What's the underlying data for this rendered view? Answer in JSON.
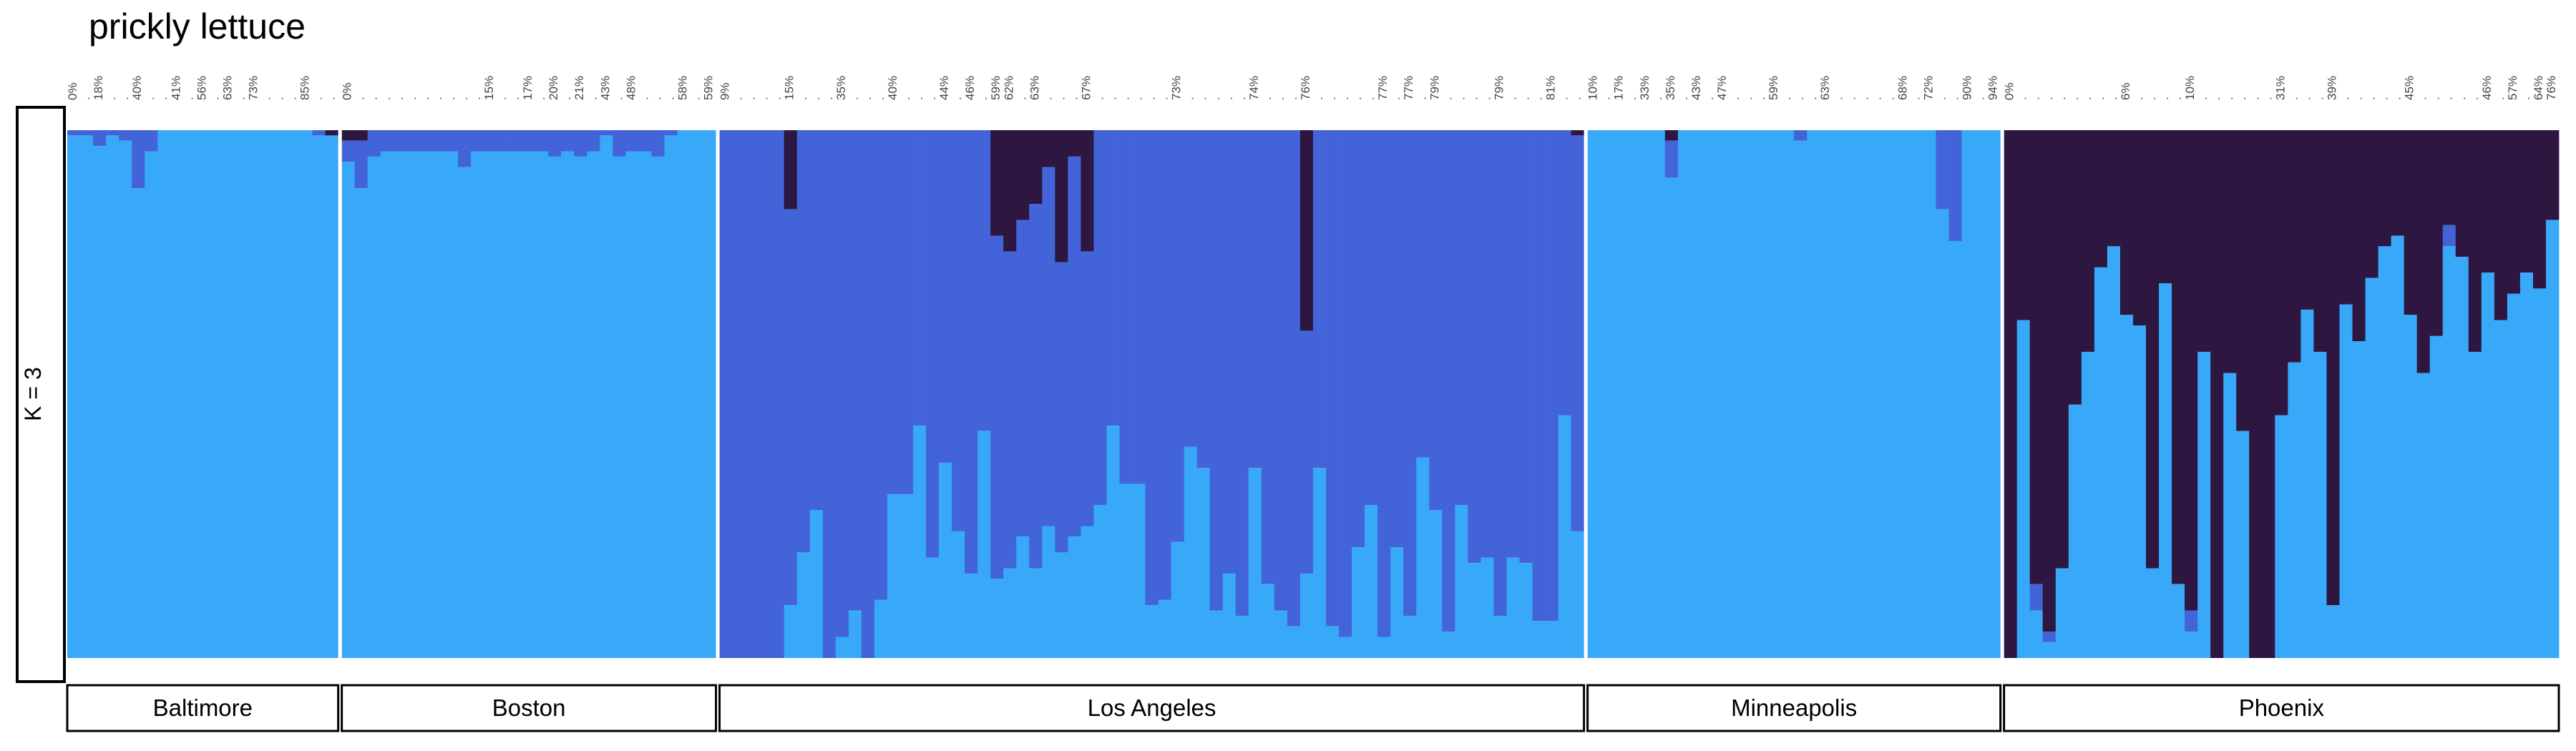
{
  "chart_data": {
    "type": "bar",
    "title": "prickly lettuce",
    "facet_label": "K = 3",
    "ylim": [
      0,
      1
    ],
    "colors": {
      "c1": "#38a8f8",
      "c2": "#4363d8",
      "c3": "#2d1640"
    },
    "groups": [
      {
        "name": "Baltimore",
        "tick_labels": [
          "0%",
          ".",
          "18%",
          ".",
          ".",
          "40%",
          ".",
          ".",
          "41%",
          ".",
          "56%",
          ".",
          "63%",
          ".",
          "73%",
          ".",
          ".",
          ".",
          "85%",
          ".",
          "."
        ],
        "c2": [
          0.01,
          0.01,
          0.03,
          0.01,
          0.02,
          0.11,
          0.04,
          0,
          0,
          0,
          0,
          0,
          0,
          0,
          0,
          0,
          0,
          0,
          0,
          0.01,
          0
        ],
        "c3": [
          0,
          0,
          0,
          0,
          0,
          0,
          0,
          0,
          0,
          0,
          0,
          0,
          0,
          0,
          0,
          0,
          0,
          0,
          0,
          0,
          0.01
        ]
      },
      {
        "name": "Boston",
        "tick_labels": [
          "0%",
          ".",
          ".",
          ".",
          ".",
          ".",
          ".",
          ".",
          ".",
          ".",
          ".",
          "15%",
          ".",
          ".",
          "17%",
          ".",
          "20%",
          ".",
          "21%",
          ".",
          "43%",
          ".",
          "48%",
          ".",
          ".",
          ".",
          "58%",
          ".",
          "59%"
        ],
        "c2": [
          0.04,
          0.09,
          0.05,
          0.04,
          0.04,
          0.04,
          0.04,
          0.04,
          0.04,
          0.07,
          0.04,
          0.04,
          0.04,
          0.04,
          0.04,
          0.04,
          0.05,
          0.04,
          0.05,
          0.04,
          0.01,
          0.05,
          0.04,
          0.04,
          0.05,
          0.01,
          0,
          0,
          0
        ],
        "c3": [
          0.02,
          0.02,
          0,
          0,
          0,
          0,
          0,
          0,
          0,
          0,
          0,
          0,
          0,
          0,
          0,
          0,
          0,
          0,
          0,
          0,
          0,
          0,
          0,
          0,
          0,
          0,
          0,
          0,
          0
        ]
      },
      {
        "name": "Los Angeles",
        "tick_labels": [
          "9%",
          ".",
          ".",
          ".",
          ".",
          "15%",
          ".",
          ".",
          ".",
          "35%",
          ".",
          ".",
          ".",
          "40%",
          ".",
          ".",
          ".",
          "44%",
          ".",
          "46%",
          ".",
          "59%",
          "62%",
          ".",
          "63%",
          ".",
          ".",
          ".",
          "67%",
          ".",
          ".",
          ".",
          ".",
          ".",
          ".",
          "73%",
          ".",
          ".",
          ".",
          ".",
          ".",
          "74%",
          ".",
          ".",
          ".",
          "76%",
          ".",
          ".",
          ".",
          ".",
          ".",
          "77%",
          ".",
          "77%",
          ".",
          "79%",
          ".",
          ".",
          ".",
          ".",
          "79%",
          ".",
          ".",
          ".",
          "81%",
          ".",
          "."
        ],
        "c2": [
          1,
          1,
          1,
          1,
          1,
          0.75,
          0.8,
          0.72,
          1,
          0.96,
          0.91,
          1,
          0.89,
          0.69,
          0.69,
          0.56,
          0.81,
          0.63,
          0.76,
          0.84,
          0.57,
          0.65,
          0.6,
          0.6,
          0.69,
          0.68,
          0.55,
          0.72,
          0.52,
          0.71,
          0.56,
          0.67,
          0.67,
          0.9,
          0.89,
          0.78,
          0.6,
          0.64,
          0.91,
          0.84,
          0.92,
          0.64,
          0.86,
          0.91,
          0.94,
          0.46,
          0.64,
          0.94,
          0.96,
          0.79,
          0.71,
          0.96,
          0.79,
          0.92,
          0.62,
          0.72,
          0.95,
          0.71,
          0.82,
          0.81,
          0.92,
          0.81,
          0.82,
          0.93,
          0.93,
          0.54,
          0.75
        ],
        "c3": [
          0,
          0,
          0,
          0,
          0,
          0.15,
          0,
          0,
          0,
          0,
          0,
          0,
          0,
          0,
          0,
          0,
          0,
          0,
          0,
          0,
          0,
          0.2,
          0.23,
          0.17,
          0.14,
          0.07,
          0.25,
          0.05,
          0.23,
          0,
          0,
          0,
          0,
          0,
          0,
          0,
          0,
          0,
          0,
          0,
          0,
          0,
          0,
          0,
          0,
          0.38,
          0,
          0,
          0,
          0,
          0,
          0,
          0,
          0,
          0,
          0,
          0,
          0,
          0,
          0,
          0,
          0,
          0,
          0,
          0,
          0,
          0.01,
          0
        ]
      },
      {
        "name": "Minneapolis",
        "tick_labels": [
          "10%",
          ".",
          "17%",
          ".",
          "33%",
          ".",
          "35%",
          ".",
          "43%",
          ".",
          "47%",
          ".",
          ".",
          ".",
          "59%",
          ".",
          ".",
          ".",
          "63%",
          ".",
          ".",
          ".",
          ".",
          ".",
          "68%",
          ".",
          "72%",
          ".",
          ".",
          "90%",
          ".",
          "94%"
        ],
        "c2": [
          0,
          0,
          0,
          0,
          0,
          0,
          0.07,
          0,
          0,
          0,
          0,
          0,
          0,
          0,
          0,
          0,
          0.02,
          0,
          0,
          0,
          0,
          0,
          0,
          0,
          0,
          0,
          0,
          0.15,
          0.21,
          0,
          0,
          0
        ],
        "c3": [
          0,
          0,
          0,
          0,
          0,
          0,
          0.02,
          0,
          0,
          0,
          0,
          0,
          0,
          0,
          0,
          0,
          0,
          0,
          0,
          0,
          0,
          0,
          0,
          0,
          0,
          0,
          0,
          0,
          0,
          0,
          0,
          0
        ]
      },
      {
        "name": "Phoenix",
        "tick_labels": [
          "0%",
          ".",
          ".",
          ".",
          ".",
          ".",
          ".",
          ".",
          ".",
          "6%",
          ".",
          ".",
          ".",
          ".",
          "10%",
          ".",
          ".",
          ".",
          ".",
          ".",
          ".",
          "31%",
          ".",
          ".",
          ".",
          "39%",
          ".",
          ".",
          ".",
          ".",
          ".",
          "45%",
          ".",
          ".",
          ".",
          ".",
          ".",
          "46%",
          ".",
          "57%",
          ".",
          "64%",
          "76%"
        ],
        "c2": [
          0,
          0,
          0.05,
          0.02,
          0,
          0,
          0,
          0,
          0,
          0,
          0,
          0,
          0,
          0,
          0.04,
          0,
          0,
          0,
          0,
          0,
          0,
          0,
          0,
          0,
          0,
          0,
          0,
          0,
          0,
          0,
          0,
          0,
          0,
          0,
          0.04,
          0,
          0,
          0,
          0,
          0,
          0,
          0,
          0
        ],
        "c3": [
          1,
          0.36,
          0.86,
          0.95,
          0.83,
          0.52,
          0.42,
          0.26,
          0.22,
          0.35,
          0.37,
          0.83,
          0.29,
          0.86,
          0.91,
          0.42,
          1,
          0.46,
          0.57,
          1,
          1,
          0.54,
          0.44,
          0.34,
          0.42,
          0.9,
          0.33,
          0.4,
          0.28,
          0.22,
          0.2,
          0.35,
          0.46,
          0.39,
          0.18,
          0.24,
          0.42,
          0.27,
          0.36,
          0.31,
          0.27,
          0.3,
          0.17
        ]
      }
    ]
  }
}
